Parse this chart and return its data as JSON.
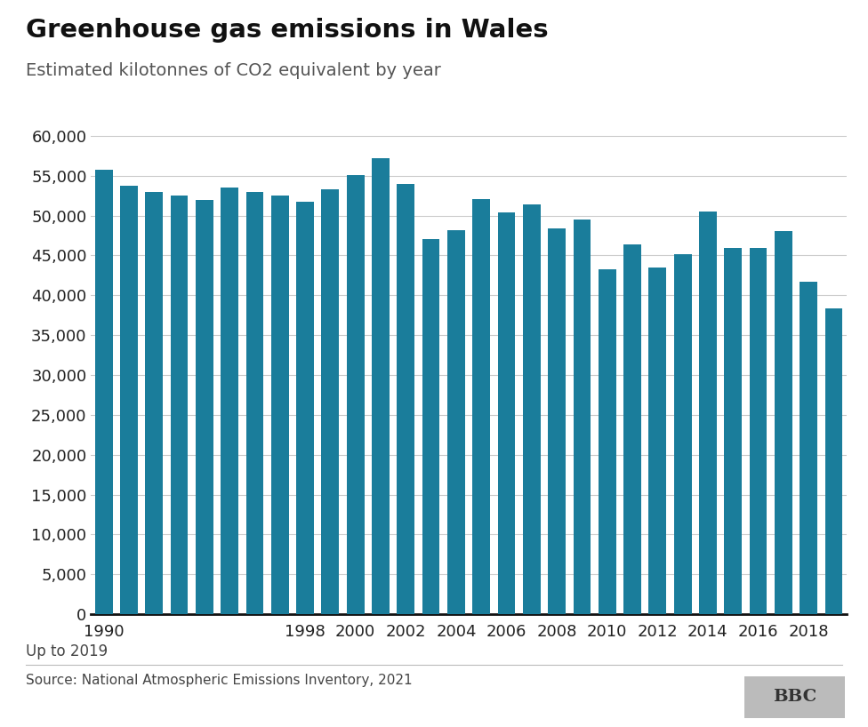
{
  "title": "Greenhouse gas emissions in Wales",
  "subtitle": "Estimated kilotonnes of CO2 equivalent by year",
  "footer_note": "Up to 2019",
  "source": "Source: National Atmospheric Emissions Inventory, 2021",
  "bar_color": "#1a7d9b",
  "background_color": "#ffffff",
  "years": [
    1990,
    1991,
    1992,
    1993,
    1994,
    1995,
    1996,
    1997,
    1998,
    1999,
    2000,
    2001,
    2002,
    2003,
    2004,
    2005,
    2006,
    2007,
    2008,
    2009,
    2010,
    2011,
    2012,
    2013,
    2014,
    2015,
    2016,
    2017,
    2018,
    2019
  ],
  "values": [
    55700,
    53800,
    53000,
    52500,
    52000,
    53500,
    53000,
    52500,
    51700,
    53300,
    55100,
    57200,
    54000,
    47100,
    48200,
    52100,
    50400,
    51400,
    48400,
    49500,
    43300,
    46400,
    43500,
    45200,
    50500,
    46000,
    45900,
    48100,
    41700,
    38400
  ],
  "xlabels": [
    "1990",
    "1998",
    "2000",
    "2002",
    "2004",
    "2006",
    "2008",
    "2010",
    "2012",
    "2014",
    "2016",
    "2018"
  ],
  "ylim": [
    0,
    62000
  ],
  "yticks": [
    0,
    5000,
    10000,
    15000,
    20000,
    25000,
    30000,
    35000,
    40000,
    45000,
    50000,
    55000,
    60000
  ]
}
